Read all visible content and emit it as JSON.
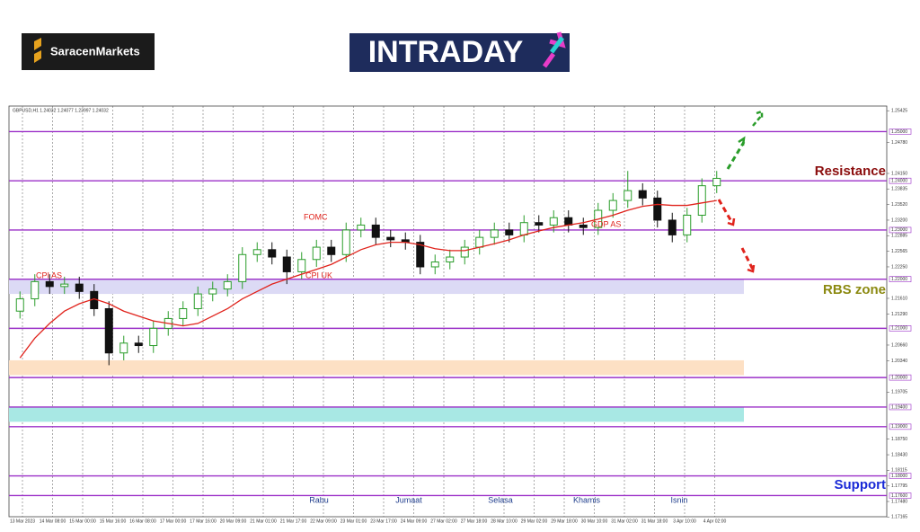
{
  "header": {
    "brand": "SaracenMarkets",
    "banner": "INTRADAY"
  },
  "chart_data": {
    "type": "candlestick",
    "symbol_info": "GBPUSD,H1  1.24032 1.24077 1.23997 1.24032",
    "open": [
      1.2135,
      1.216,
      1.2195,
      1.2185,
      1.219,
      1.2175,
      1.214,
      1.205,
      1.207,
      1.2065,
      1.21,
      1.212,
      1.214,
      1.217,
      1.218,
      1.2195,
      1.225,
      1.226,
      1.2245,
      1.2215,
      1.224,
      1.2265,
      1.225,
      1.23,
      1.231,
      1.2285,
      1.228,
      1.2275,
      1.2225,
      1.2235,
      1.2245,
      1.2265,
      1.2285,
      1.23,
      1.229,
      1.2315,
      1.231,
      1.2325,
      1.231,
      1.2305,
      1.234,
      1.236,
      1.238,
      1.2365,
      1.232,
      1.229,
      1.233,
      1.239
    ],
    "high": [
      1.2175,
      1.221,
      1.221,
      1.2205,
      1.2205,
      1.219,
      1.2155,
      1.2085,
      1.2085,
      1.2115,
      1.2135,
      1.2155,
      1.2185,
      1.2195,
      1.221,
      1.2265,
      1.2275,
      1.2275,
      1.226,
      1.2255,
      1.228,
      1.228,
      1.2315,
      1.2325,
      1.2325,
      1.23,
      1.2295,
      1.229,
      1.225,
      1.226,
      1.228,
      1.23,
      1.2315,
      1.2315,
      1.233,
      1.233,
      1.234,
      1.234,
      1.2325,
      1.2355,
      1.2375,
      1.242,
      1.2395,
      1.238,
      1.2335,
      1.2345,
      1.2405,
      1.242
    ],
    "low": [
      1.212,
      1.2145,
      1.217,
      1.217,
      1.216,
      1.2125,
      1.2025,
      1.2035,
      1.205,
      1.205,
      1.2085,
      1.2105,
      1.2125,
      1.2155,
      1.2165,
      1.218,
      1.2235,
      1.223,
      1.219,
      1.22,
      1.2225,
      1.2235,
      1.2235,
      1.2285,
      1.227,
      1.2265,
      1.226,
      1.221,
      1.221,
      1.222,
      1.223,
      1.225,
      1.227,
      1.2275,
      1.2275,
      1.2295,
      1.2295,
      1.2295,
      1.229,
      1.229,
      1.2325,
      1.2345,
      1.235,
      1.2305,
      1.2275,
      1.2275,
      1.2315,
      1.2375
    ],
    "close": [
      1.216,
      1.2195,
      1.2185,
      1.219,
      1.2175,
      1.214,
      1.205,
      1.207,
      1.2065,
      1.21,
      1.212,
      1.214,
      1.217,
      1.218,
      1.2195,
      1.225,
      1.226,
      1.2245,
      1.2215,
      1.224,
      1.2265,
      1.225,
      1.23,
      1.231,
      1.2285,
      1.228,
      1.2275,
      1.2225,
      1.2235,
      1.2245,
      1.2265,
      1.2285,
      1.23,
      1.229,
      1.2315,
      1.231,
      1.2325,
      1.231,
      1.2305,
      1.234,
      1.236,
      1.238,
      1.2365,
      1.232,
      1.229,
      1.233,
      1.239,
      1.2405
    ],
    "moving_average": {
      "color": "#e0231c",
      "values": [
        1.204,
        1.208,
        1.211,
        1.2135,
        1.215,
        1.216,
        1.215,
        1.2135,
        1.2125,
        1.2115,
        1.211,
        1.2105,
        1.211,
        1.2125,
        1.214,
        1.216,
        1.2175,
        1.219,
        1.22,
        1.221,
        1.222,
        1.223,
        1.2245,
        1.226,
        1.227,
        1.2275,
        1.2275,
        1.227,
        1.2262,
        1.2258,
        1.2258,
        1.2265,
        1.2272,
        1.228,
        1.229,
        1.2298,
        1.2305,
        1.231,
        1.2315,
        1.2322,
        1.233,
        1.234,
        1.2348,
        1.2352,
        1.235,
        1.235,
        1.2355,
        1.236
      ]
    },
    "x_labels": [
      "13 Mar 2023",
      "14 Mar 08:00",
      "15 Mar 00:00",
      "15 Mar 16:00",
      "16 Mar 08:00",
      "17 Mar 00:00",
      "17 Mar 16:00",
      "20 Mar 09:00",
      "21 Mar 01:00",
      "21 Mar 17:00",
      "22 Mar 09:00",
      "23 Mar 01:00",
      "23 Mar 17:00",
      "24 Mar 09:00",
      "27 Mar 02:00",
      "27 Mar 18:00",
      "28 Mar 10:00",
      "29 Mar 02:00",
      "29 Mar 18:00",
      "30 Mar 10:00",
      "31 Mar 02:00",
      "31 Mar 18:00",
      "3 Apr 10:00",
      "4 Apr 02:00"
    ],
    "ylim": [
      1.1717,
      1.2552
    ],
    "yticks": [
      {
        "value": 1.25425,
        "label": "1.25425"
      },
      {
        "value": 1.2478,
        "label": "1.24780"
      },
      {
        "value": 1.2415,
        "label": "1.24150"
      },
      {
        "value": 1.23835,
        "label": "1.23835"
      },
      {
        "value": 1.2352,
        "label": "1.23520"
      },
      {
        "value": 1.232,
        "label": "1.23200"
      },
      {
        "value": 1.22885,
        "label": "1.22885"
      },
      {
        "value": 1.22565,
        "label": "1.22565"
      },
      {
        "value": 1.2225,
        "label": "1.22250"
      },
      {
        "value": 1.2161,
        "label": "1.21610"
      },
      {
        "value": 1.2129,
        "label": "1.21290"
      },
      {
        "value": 1.2066,
        "label": "1.20660"
      },
      {
        "value": 1.2034,
        "label": "1.20340"
      },
      {
        "value": 1.19705,
        "label": "1.19705"
      },
      {
        "value": 1.1875,
        "label": "1.18750"
      },
      {
        "value": 1.1843,
        "label": "1.18430"
      },
      {
        "value": 1.18115,
        "label": "1.18115"
      },
      {
        "value": 1.17795,
        "label": "1.17795"
      },
      {
        "value": 1.1748,
        "label": "1.17480"
      },
      {
        "value": 1.17165,
        "label": "1.17165"
      }
    ],
    "levels": [
      {
        "value": 1.25,
        "label": "1.25000"
      },
      {
        "value": 1.24,
        "label": "1.24000"
      },
      {
        "value": 1.23,
        "label": "1.23000"
      },
      {
        "value": 1.22,
        "label": "1.22000"
      },
      {
        "value": 1.21,
        "label": "1.21000"
      },
      {
        "value": 1.2,
        "label": "1.20000"
      },
      {
        "value": 1.194,
        "label": "1.19400"
      },
      {
        "value": 1.19,
        "label": "1.19000"
      },
      {
        "value": 1.18,
        "label": "1.18000"
      },
      {
        "value": 1.176,
        "label": "1.17600"
      }
    ],
    "level_color": "#9b30c8",
    "zones": [
      {
        "range": [
          1.217,
          1.22
        ],
        "color": "#dcdaf5"
      },
      {
        "range": [
          1.2005,
          1.2035
        ],
        "color": "#fde0c4"
      },
      {
        "range": [
          1.191,
          1.194
        ],
        "color": "#a8e8e4"
      }
    ],
    "events": [
      "CPI AS",
      "FOMC",
      "CPI UK",
      "GDP AS"
    ],
    "days": [
      "Rabu",
      "Jumaat",
      "Selasa",
      "Khamis",
      "Isnin"
    ],
    "side_labels": [
      "Resistance",
      "RBS zone",
      "Support"
    ],
    "up_color": "#2a9d2a",
    "down_color": "#111111"
  }
}
